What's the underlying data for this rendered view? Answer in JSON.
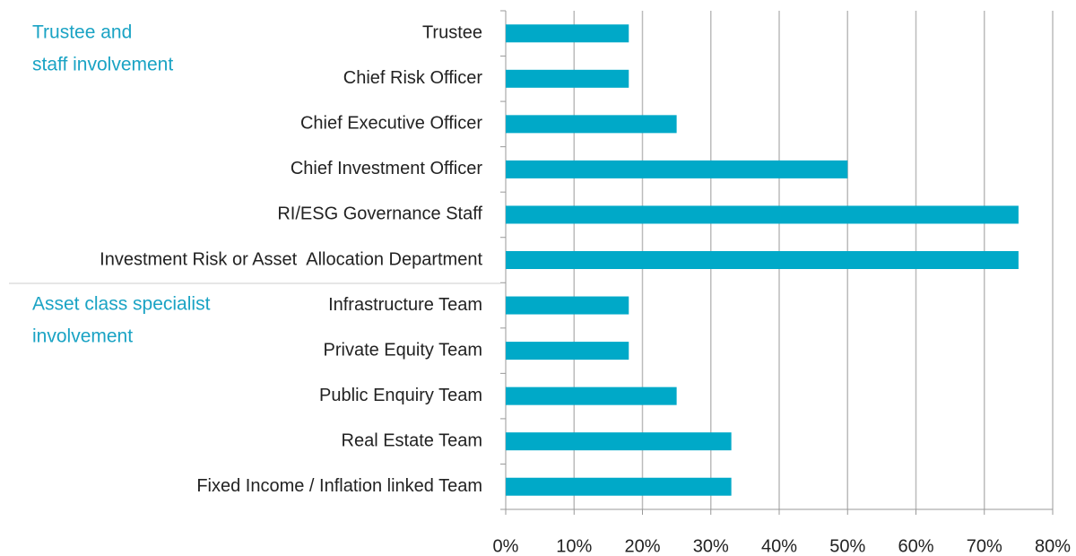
{
  "chart_data": {
    "type": "bar",
    "orientation": "horizontal",
    "categories": [
      "Trustee",
      "Chief Risk Officer",
      "Chief Executive Officer",
      "Chief Investment Officer",
      "RI/ESG Governance Staff",
      "Investment Risk or Asset  Allocation Department",
      "Infrastructure Team",
      "Private Equity Team",
      "Public Enquiry Team",
      "Real Estate Team",
      "Fixed Income / Inflation linked Team"
    ],
    "values": [
      18,
      18,
      25,
      50,
      75,
      75,
      18,
      18,
      25,
      33,
      33
    ],
    "color": "#00a9c8",
    "xlim": [
      0,
      80
    ],
    "xticks": [
      {
        "value": 0,
        "label": "0%"
      },
      {
        "value": 10,
        "label": "10%"
      },
      {
        "value": 20,
        "label": "20%"
      },
      {
        "value": 30,
        "label": "30%"
      },
      {
        "value": 40,
        "label": "40%"
      },
      {
        "value": 50,
        "label": "50%"
      },
      {
        "value": 60,
        "label": "60%"
      },
      {
        "value": 70,
        "label": "70%"
      },
      {
        "value": 80,
        "label": "80%"
      }
    ],
    "grid": true,
    "group_labels": [
      [
        "Trustee and",
        "staff involvement"
      ],
      [
        "Asset class specialist",
        "involvement"
      ]
    ]
  }
}
